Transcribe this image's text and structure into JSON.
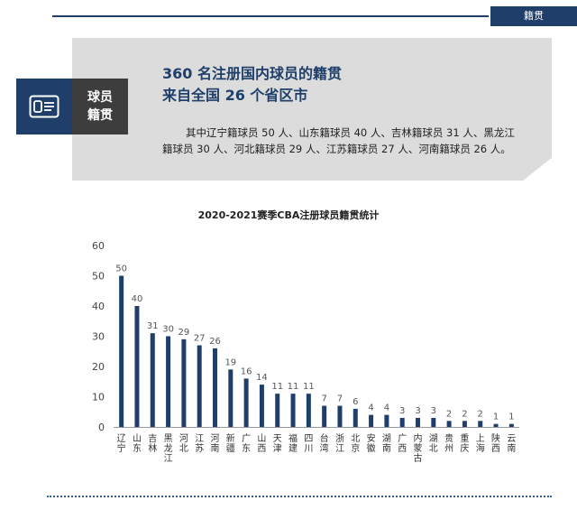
{
  "header": {
    "section_tag": "籍贯"
  },
  "info": {
    "label_line1": "球员",
    "label_line2": "籍贯",
    "headline_line1": "360 名注册国内球员的籍贯",
    "headline_line2": "来自全国 26 个省区市",
    "summary": "其中辽宁籍球员 50 人、山东籍球员 40 人、吉林籍球员 31 人、黑龙江籍球员 30 人、河北籍球员 29 人、江苏籍球员 27 人、河南籍球员 26 人。",
    "icon": "id-card-icon"
  },
  "chart_data": {
    "type": "bar",
    "title": "2020-2021赛季CBA注册球员籍贯统计",
    "categories": [
      "辽宁",
      "山东",
      "吉林",
      "黑龙江",
      "河北",
      "江苏",
      "河南",
      "新疆",
      "广东",
      "山西",
      "天津",
      "福建",
      "四川",
      "台湾",
      "浙江",
      "北京",
      "安徽",
      "湖南",
      "广西",
      "内蒙古",
      "湖北",
      "贵州",
      "重庆",
      "上海",
      "陕西",
      "云南"
    ],
    "values": [
      50,
      40,
      31,
      30,
      29,
      27,
      26,
      19,
      16,
      14,
      11,
      11,
      11,
      7,
      7,
      6,
      4,
      4,
      3,
      3,
      3,
      2,
      2,
      2,
      1,
      1
    ],
    "ylim": [
      0,
      60
    ],
    "yticks": [
      0,
      10,
      20,
      30,
      40,
      50,
      60
    ],
    "bar_color": "#1f3f6a",
    "grid": false
  }
}
